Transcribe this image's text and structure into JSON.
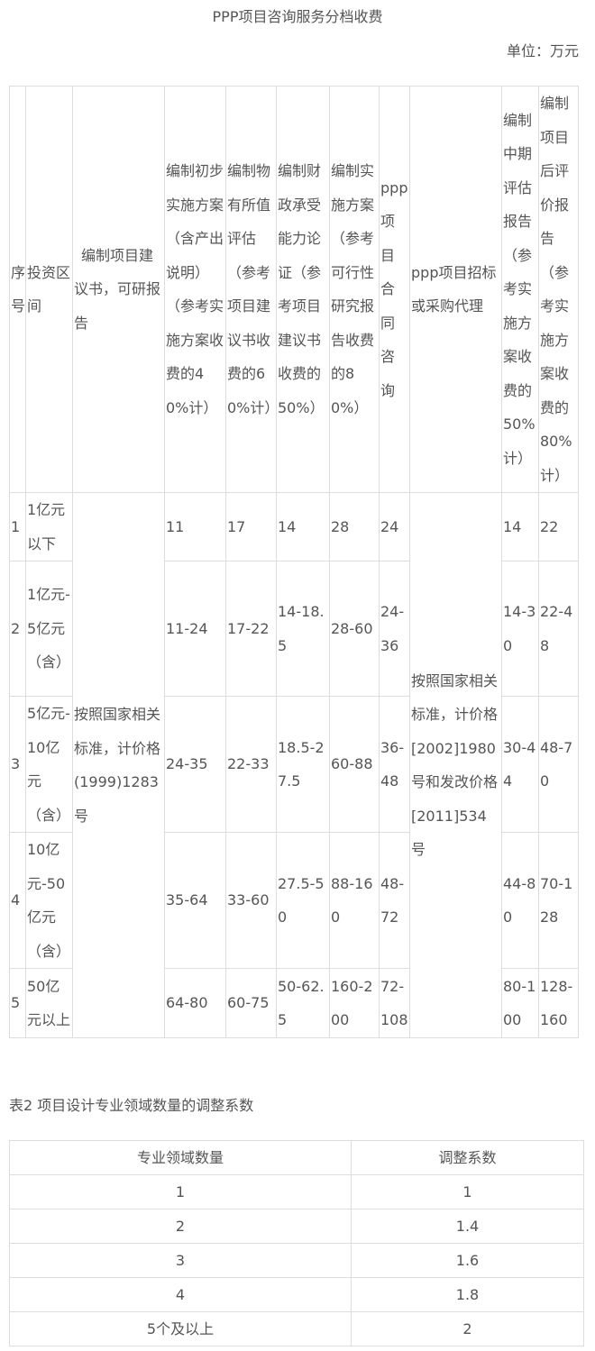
{
  "title": "PPP项目咨询服务分档收费",
  "unit": "单位：万元",
  "table1": {
    "headers": [
      "序号",
      "投资区间",
      "编制项目建议书，可研报告",
      "编制初步实施方案（含产出说明）（参考实施方案收费的40%计）",
      "编制物有所值评估（参考项目建议书收费的60%计）",
      "编制财政承受能力论证（参考项目建议书收费的50%）",
      "编制实施方案（参考可行性研究报告收费的80%）",
      "ppp项目合同咨询",
      "ppp项目招标或采购代理",
      "编制中期评估报告（参考实施方案收费的50%计）",
      "编制项目后评价报告（参考实施方案收费的80%计）"
    ],
    "merged_col3": "按照国家相关标准，计价格(1999)1283号",
    "merged_col9": "按照国家相关标准，计价格[2002]1980号和发改价格[2011]534号",
    "rows": [
      {
        "no": "1",
        "range": "1亿元以下",
        "c4": "11",
        "c5": "17",
        "c6": "14",
        "c7": "28",
        "c8": "24",
        "c10": "14",
        "c11": "22"
      },
      {
        "no": "2",
        "range": "1亿元-5亿元（含）",
        "c4": "11-24",
        "c5": "17-22",
        "c6": "14-18.5",
        "c7": "28-60",
        "c8": "24-36",
        "c10": "14-30",
        "c11": "22-48"
      },
      {
        "no": "3",
        "range": "5亿元-10亿元（含）",
        "c4": "24-35",
        "c5": "22-33",
        "c6": "18.5-27.5",
        "c7": "60-88",
        "c8": "36-48",
        "c10": "30-44",
        "c11": "48-70"
      },
      {
        "no": "4",
        "range": "10亿元-50亿元（含）",
        "c4": "35-64",
        "c5": "33-60",
        "c6": "27.5-50",
        "c7": "88-160",
        "c8": "48-72",
        "c10": "44-80",
        "c11": "70-128"
      },
      {
        "no": "5",
        "range": "50亿元以上",
        "c4": "64-80",
        "c5": "60-75",
        "c6": "50-62.5",
        "c7": "160-200",
        "c8": "72-108",
        "c10": "80-100",
        "c11": "128-160"
      }
    ]
  },
  "table2": {
    "caption": "表2 项目设计专业领域数量的调整系数",
    "headers": [
      "专业领域数量",
      "调整系数"
    ],
    "rows": [
      [
        "1",
        "1"
      ],
      [
        "2",
        "1.4"
      ],
      [
        "3",
        "1.6"
      ],
      [
        "4",
        "1.8"
      ],
      [
        "5个及以上",
        "2"
      ]
    ]
  }
}
